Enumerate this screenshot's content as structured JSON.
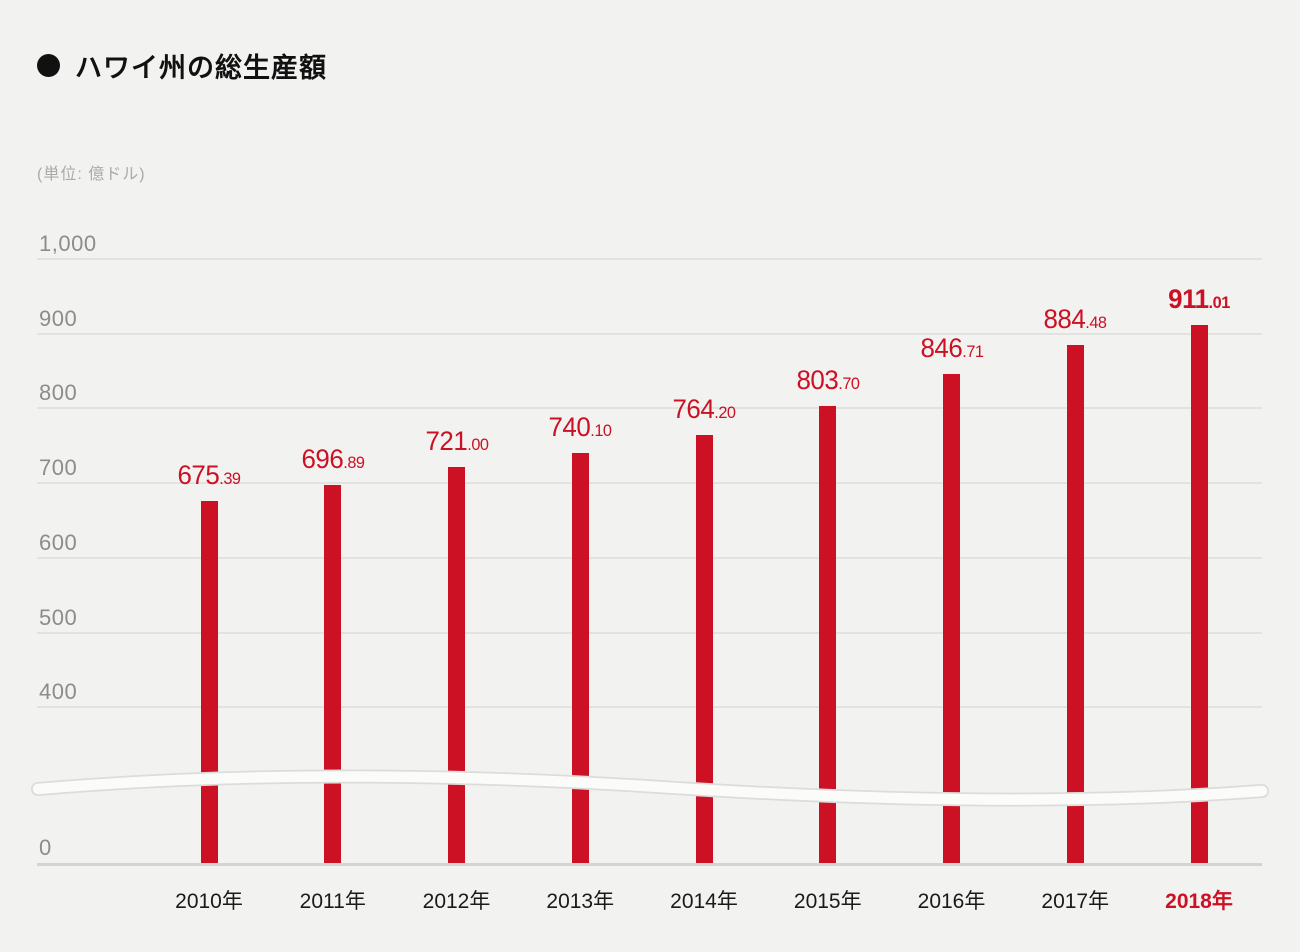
{
  "header": {
    "title": "ハワイ州の総生産額",
    "unit_label": "(単位: 億ドル)"
  },
  "colors": {
    "background": "#f2f2f1",
    "accent_red": "#cc1124",
    "year_text": "#1a1a1a",
    "axis_label_gray": "#8c8c8c",
    "unit_label_gray": "#aaaaa9",
    "gridline": "#e2e2e1",
    "baseline": "#d4d4d3",
    "break_band_fill": "#fbfbfa",
    "break_band_edge": "#dcdcdb"
  },
  "chart_data": {
    "type": "bar",
    "title": "ハワイ州の総生産額",
    "unit": "億ドル",
    "categories": [
      "2010年",
      "2011年",
      "2012年",
      "2013年",
      "2014年",
      "2015年",
      "2016年",
      "2017年",
      "2018年"
    ],
    "values": [
      675.39,
      696.89,
      721.0,
      740.1,
      764.2,
      803.7,
      846.71,
      884.48,
      911.01
    ],
    "value_labels": [
      "675.39",
      "696.89",
      "721.00",
      "740.10",
      "764.20",
      "803.70",
      "846.71",
      "884.48",
      "911.01"
    ],
    "highlight_index": 8,
    "bar_color": "#cc1124",
    "xlabel": "",
    "ylabel": "億ドル",
    "ylim": [
      0,
      1000
    ],
    "y_ticks": [
      {
        "label": "1,000",
        "value": 1000
      },
      {
        "label": "900",
        "value": 900
      },
      {
        "label": "800",
        "value": 800
      },
      {
        "label": "700",
        "value": 700
      },
      {
        "label": "600",
        "value": 600
      },
      {
        "label": "500",
        "value": 500
      },
      {
        "label": "400",
        "value": 400
      },
      {
        "label": "0",
        "value": 0
      }
    ],
    "axis_break_between": [
      0,
      400
    ],
    "grid": true,
    "legend": false
  }
}
